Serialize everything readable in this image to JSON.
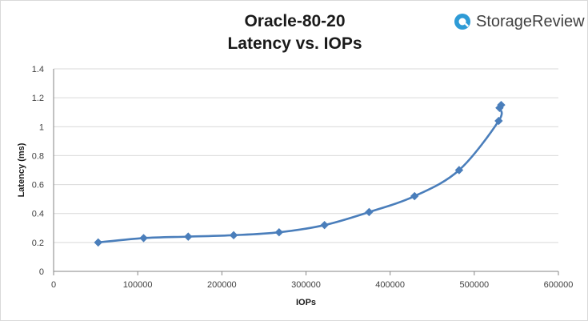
{
  "brand": {
    "name": "StorageReview",
    "icon": "storagereview-logo-icon",
    "color": "#2e9bd6"
  },
  "chart_data": {
    "type": "scatter",
    "title": "Oracle-80-20",
    "subtitle": "Latency vs. IOPs",
    "xlabel": "IOPs",
    "ylabel": "Latency (ms)",
    "xlim": [
      0,
      600000
    ],
    "ylim": [
      0,
      1.4
    ],
    "x_ticks": [
      "0",
      "100000",
      "200000",
      "300000",
      "400000",
      "500000",
      "600000"
    ],
    "y_ticks": [
      "0",
      "0.2",
      "0.4",
      "0.6",
      "0.8",
      "1",
      "1.2",
      "1.4"
    ],
    "grid": true,
    "legend": "none",
    "series": [
      {
        "color": "#4a7ebb",
        "marker": "diamond",
        "line": "smooth",
        "points": [
          {
            "x": 53000,
            "y": 0.2
          },
          {
            "x": 107000,
            "y": 0.23
          },
          {
            "x": 160000,
            "y": 0.24
          },
          {
            "x": 214000,
            "y": 0.25
          },
          {
            "x": 268000,
            "y": 0.27
          },
          {
            "x": 322000,
            "y": 0.32
          },
          {
            "x": 375000,
            "y": 0.41
          },
          {
            "x": 429000,
            "y": 0.52
          },
          {
            "x": 482000,
            "y": 0.7
          },
          {
            "x": 529000,
            "y": 1.04
          },
          {
            "x": 530000,
            "y": 1.13
          },
          {
            "x": 532000,
            "y": 1.15
          }
        ]
      }
    ]
  }
}
